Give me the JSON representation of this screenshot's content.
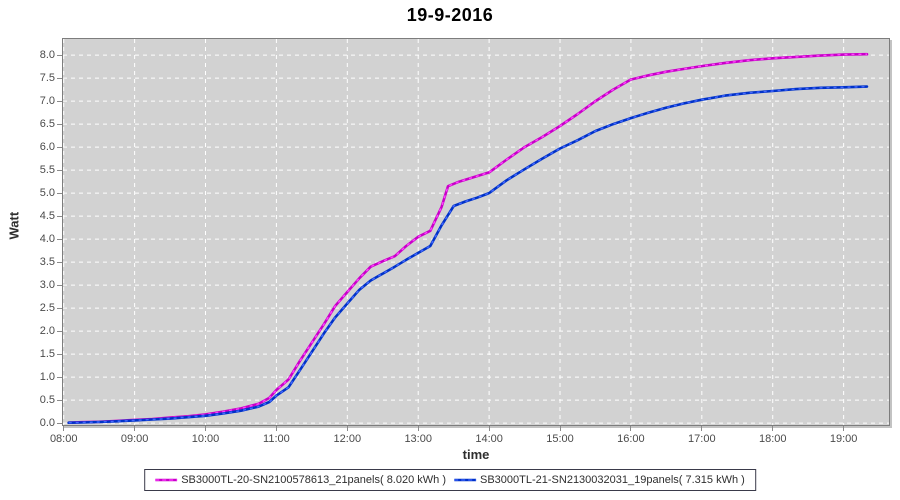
{
  "title": "19-9-2016",
  "colors": {
    "plot_background": "#d2d2d2",
    "grid": "#ffffff",
    "axis_text": "#4a4a4a",
    "series1": "#c800c8",
    "series1_overlay": "#ff44ff",
    "series2": "#0032c8",
    "series2_overlay": "#4468ff"
  },
  "legend": {
    "items": [
      {
        "label": "SB3000TL-20-SN2100578613_21panels( 8.020 kWh )",
        "color": "#c800c8",
        "overlay": "#ff44ff"
      },
      {
        "label": "SB3000TL-21-SN2130032031_19panels( 7.315 kWh )",
        "color": "#0032c8",
        "overlay": "#4468ff"
      }
    ]
  },
  "chart_data": {
    "type": "line",
    "title": "19-9-2016",
    "xlabel": "time",
    "ylabel": "Watt",
    "grid": "on",
    "legend_position": "bottom",
    "x_ticks": {
      "values": [
        8,
        9,
        10,
        11,
        12,
        13,
        14,
        15,
        16,
        17,
        18,
        19
      ],
      "labels": [
        "08:00",
        "09:00",
        "10:00",
        "11:00",
        "12:00",
        "13:00",
        "14:00",
        "15:00",
        "16:00",
        "17:00",
        "18:00",
        "19:00"
      ]
    },
    "y_ticks": {
      "values": [
        0,
        0.5,
        1,
        1.5,
        2,
        2.5,
        3,
        3.5,
        4,
        4.5,
        5,
        5.5,
        6,
        6.5,
        7,
        7.5,
        8
      ],
      "labels": [
        "0.0",
        "0.5",
        "1.0",
        "1.5",
        "2.0",
        "2.5",
        "3.0",
        "3.5",
        "4.0",
        "4.5",
        "5.0",
        "5.5",
        "6.0",
        "6.5",
        "7.0",
        "7.5",
        "8.0"
      ]
    },
    "xlim_hours": [
      7.99,
      19.64
    ],
    "ylim": [
      -0.04,
      8.35
    ],
    "series": [
      {
        "name": "SB3000TL-20-SN2100578613_21panels( 8.020 kWh )",
        "total_kwh": 8.02,
        "color": "#c800c8",
        "overlay": "#ff44ff",
        "points": [
          [
            8.07,
            0.01
          ],
          [
            8.25,
            0.02
          ],
          [
            8.5,
            0.03
          ],
          [
            8.75,
            0.05
          ],
          [
            9,
            0.07
          ],
          [
            9.25,
            0.09
          ],
          [
            9.5,
            0.12
          ],
          [
            9.75,
            0.15
          ],
          [
            10,
            0.19
          ],
          [
            10.25,
            0.25
          ],
          [
            10.5,
            0.32
          ],
          [
            10.75,
            0.42
          ],
          [
            10.9,
            0.55
          ],
          [
            11,
            0.72
          ],
          [
            11.17,
            0.95
          ],
          [
            11.33,
            1.35
          ],
          [
            11.5,
            1.75
          ],
          [
            11.67,
            2.15
          ],
          [
            11.83,
            2.55
          ],
          [
            12,
            2.85
          ],
          [
            12.17,
            3.15
          ],
          [
            12.33,
            3.4
          ],
          [
            12.5,
            3.52
          ],
          [
            12.67,
            3.63
          ],
          [
            12.83,
            3.85
          ],
          [
            13,
            4.05
          ],
          [
            13.17,
            4.18
          ],
          [
            13.33,
            4.7
          ],
          [
            13.42,
            5.15
          ],
          [
            13.58,
            5.25
          ],
          [
            13.75,
            5.33
          ],
          [
            14,
            5.45
          ],
          [
            14.25,
            5.73
          ],
          [
            14.5,
            6.0
          ],
          [
            14.75,
            6.22
          ],
          [
            15,
            6.46
          ],
          [
            15.25,
            6.72
          ],
          [
            15.5,
            7.0
          ],
          [
            15.75,
            7.25
          ],
          [
            16,
            7.47
          ],
          [
            16.25,
            7.56
          ],
          [
            16.5,
            7.64
          ],
          [
            16.75,
            7.7
          ],
          [
            17,
            7.76
          ],
          [
            17.33,
            7.83
          ],
          [
            17.67,
            7.89
          ],
          [
            18,
            7.93
          ],
          [
            18.33,
            7.96
          ],
          [
            18.67,
            7.99
          ],
          [
            19,
            8.01
          ],
          [
            19.33,
            8.02
          ]
        ]
      },
      {
        "name": "SB3000TL-21-SN2130032031_19panels( 7.315 kWh )",
        "total_kwh": 7.315,
        "color": "#0032c8",
        "overlay": "#4468ff",
        "points": [
          [
            8.07,
            0.01
          ],
          [
            8.25,
            0.015
          ],
          [
            8.5,
            0.025
          ],
          [
            8.75,
            0.04
          ],
          [
            9,
            0.06
          ],
          [
            9.25,
            0.08
          ],
          [
            9.5,
            0.1
          ],
          [
            9.75,
            0.13
          ],
          [
            10,
            0.16
          ],
          [
            10.25,
            0.21
          ],
          [
            10.5,
            0.27
          ],
          [
            10.75,
            0.36
          ],
          [
            10.9,
            0.46
          ],
          [
            11,
            0.6
          ],
          [
            11.17,
            0.78
          ],
          [
            11.33,
            1.15
          ],
          [
            11.5,
            1.55
          ],
          [
            11.67,
            1.95
          ],
          [
            11.83,
            2.3
          ],
          [
            12,
            2.6
          ],
          [
            12.17,
            2.9
          ],
          [
            12.33,
            3.1
          ],
          [
            12.5,
            3.25
          ],
          [
            12.67,
            3.4
          ],
          [
            12.83,
            3.55
          ],
          [
            13,
            3.7
          ],
          [
            13.17,
            3.85
          ],
          [
            13.33,
            4.3
          ],
          [
            13.5,
            4.72
          ],
          [
            13.67,
            4.82
          ],
          [
            13.83,
            4.9
          ],
          [
            14,
            5.0
          ],
          [
            14.25,
            5.28
          ],
          [
            14.5,
            5.52
          ],
          [
            14.75,
            5.75
          ],
          [
            15,
            5.97
          ],
          [
            15.25,
            6.15
          ],
          [
            15.5,
            6.35
          ],
          [
            15.75,
            6.5
          ],
          [
            16,
            6.63
          ],
          [
            16.25,
            6.75
          ],
          [
            16.5,
            6.86
          ],
          [
            16.75,
            6.95
          ],
          [
            17,
            7.03
          ],
          [
            17.33,
            7.12
          ],
          [
            17.67,
            7.18
          ],
          [
            18,
            7.22
          ],
          [
            18.33,
            7.26
          ],
          [
            18.67,
            7.29
          ],
          [
            19,
            7.3
          ],
          [
            19.33,
            7.315
          ]
        ]
      }
    ]
  }
}
